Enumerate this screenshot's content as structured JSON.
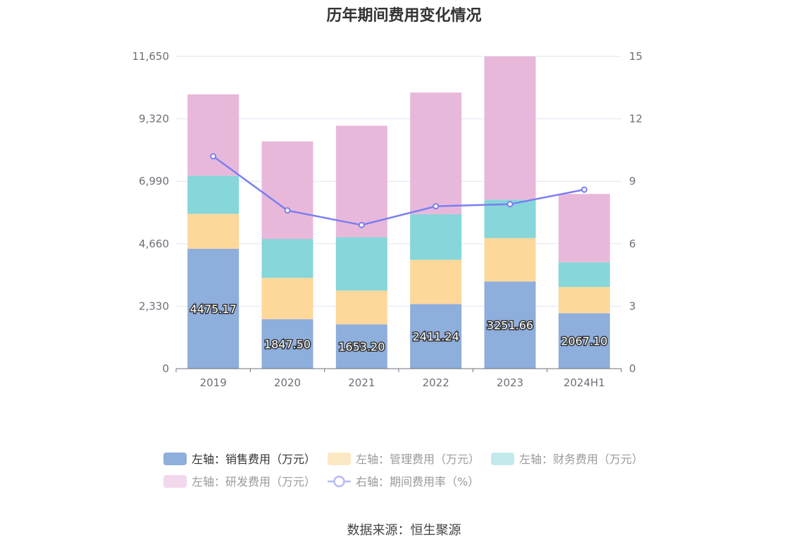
{
  "title": "历年期间费用变化情况",
  "source": "数据来源：恒生聚源",
  "chart_data": {
    "type": "bar",
    "stacked": true,
    "categories": [
      "2019",
      "2020",
      "2021",
      "2022",
      "2023",
      "2024H1"
    ],
    "left_axis": {
      "ylim": [
        0,
        11650
      ],
      "ticks": [
        "0",
        "2,330",
        "4,660",
        "6,990",
        "9,320",
        "11,650"
      ],
      "tick_values": [
        0,
        2330,
        4660,
        6990,
        9320,
        11650
      ]
    },
    "right_axis": {
      "ylim": [
        0,
        15
      ],
      "ticks": [
        "0",
        "3",
        "6",
        "9",
        "12",
        "15"
      ],
      "tick_values": [
        0,
        3,
        6,
        9,
        12,
        15
      ]
    },
    "series": [
      {
        "name": "左轴：销售费用（万元）",
        "axis": "left",
        "kind": "bar",
        "color": "#8eaedc",
        "values": [
          4475.17,
          1847.5,
          1653.2,
          2411.24,
          3251.66,
          2067.1
        ],
        "labels": [
          "4475.17",
          "1847.50",
          "1653.20",
          "2411.24",
          "3251.66",
          "2067.10"
        ]
      },
      {
        "name": "左轴：管理费用（万元）",
        "axis": "left",
        "kind": "bar",
        "color": "#fdd89a",
        "values": [
          1300,
          1540,
          1260,
          1650,
          1620,
          980
        ]
      },
      {
        "name": "左轴：财务费用（万元）",
        "axis": "left",
        "kind": "bar",
        "color": "#86d6da",
        "values": [
          1420,
          1450,
          1990,
          1700,
          1430,
          920
        ]
      },
      {
        "name": "左轴：研发费用（万元）",
        "axis": "left",
        "kind": "bar",
        "color": "#e8b8db",
        "values": [
          3040,
          3640,
          4160,
          4540,
          5350,
          2550
        ]
      },
      {
        "name": "右轴：期间费用率（%）",
        "axis": "right",
        "kind": "line",
        "color": "#7b7ef0",
        "values": [
          10.2,
          7.6,
          6.9,
          7.8,
          7.9,
          8.6
        ]
      }
    ],
    "legend": {
      "position": "bottom",
      "items": [
        {
          "label": "左轴：销售费用（万元）",
          "color": "#8eaedc",
          "kind": "rect",
          "active": true
        },
        {
          "label": "左轴：管理费用（万元）",
          "color": "#fde8c4",
          "kind": "rect",
          "active": false
        },
        {
          "label": "左轴：财务费用（万元）",
          "color": "#c4e9ec",
          "kind": "rect",
          "active": false
        },
        {
          "label": "左轴：研发费用（万元）",
          "color": "#f2d8ec",
          "kind": "rect",
          "active": false
        },
        {
          "label": "右轴：期间费用率（%）",
          "color": "#b7b9f5",
          "kind": "line",
          "active": false
        }
      ]
    },
    "grid": true
  }
}
